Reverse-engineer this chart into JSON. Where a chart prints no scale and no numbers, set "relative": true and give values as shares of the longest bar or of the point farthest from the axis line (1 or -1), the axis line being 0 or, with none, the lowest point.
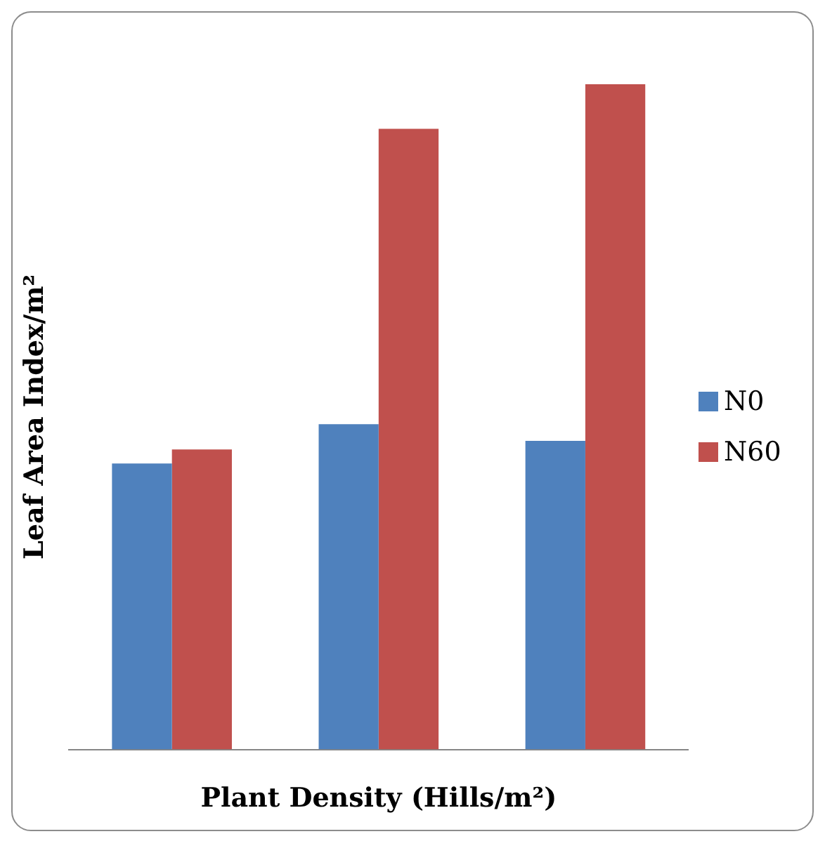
{
  "chart_data": {
    "type": "bar",
    "relative": true,
    "xlabel": "Plant Density (Hills/m²)",
    "ylabel": "Leaf Area Index/m²",
    "categories": [
      null,
      null,
      null
    ],
    "legend": "right",
    "grid": false,
    "series": [
      {
        "name": "N0",
        "color": "#4f81bd",
        "values": [
          0.43,
          0.489,
          0.464
        ]
      },
      {
        "name": "N60",
        "color": "#c0504d",
        "values": [
          0.451,
          0.933,
          1
        ]
      }
    ]
  }
}
